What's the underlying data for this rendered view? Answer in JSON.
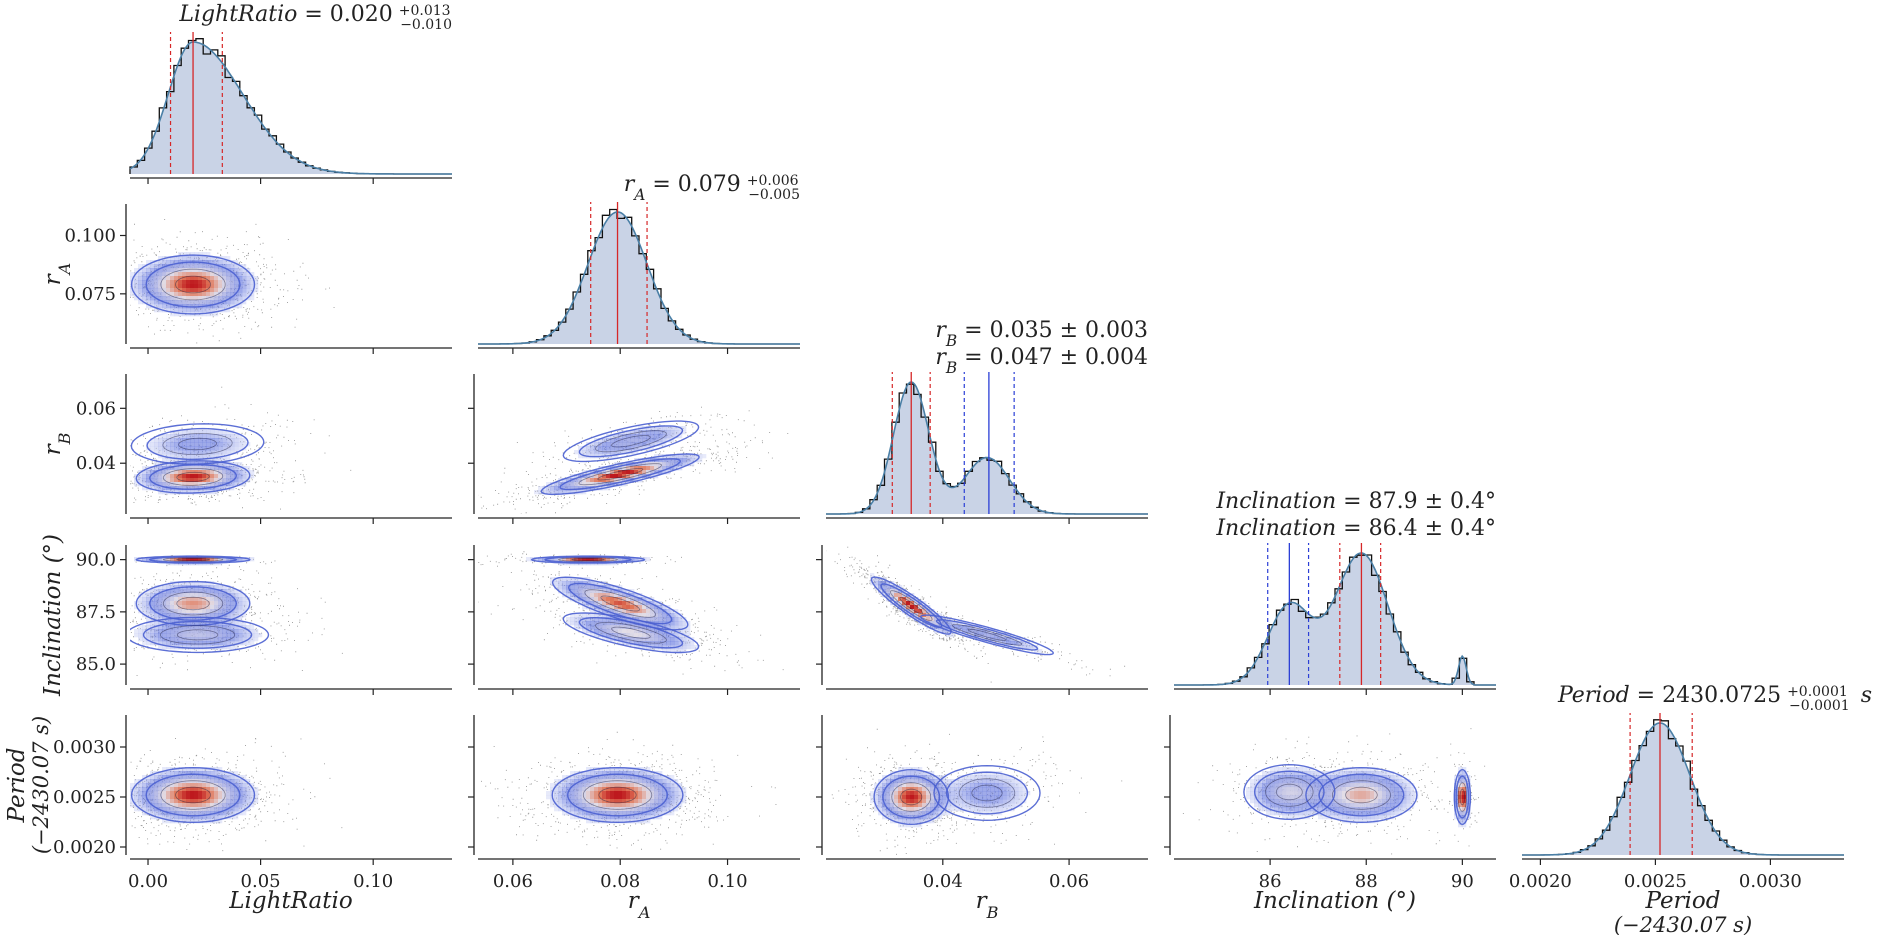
{
  "chart_data": {
    "type": "corner",
    "parameters": [
      {
        "key": "LightRatio",
        "label": "LightRatio",
        "sublabel": "",
        "range": [
          -0.008,
          0.135
        ],
        "ticks": [
          0.0,
          0.05,
          0.1
        ],
        "tick_labels": [
          "0.00",
          "0.05",
          "0.10"
        ]
      },
      {
        "key": "rA",
        "label": "r_A",
        "sublabel": "",
        "range": [
          0.0535,
          0.1135
        ],
        "ticks": [
          0.06,
          0.08,
          0.1
        ],
        "tick_labels": [
          "0.06",
          "0.08",
          "0.10"
        ]
      },
      {
        "key": "rB",
        "label": "r_B",
        "sublabel": "",
        "range": [
          0.0215,
          0.0725
        ],
        "ticks": [
          0.04,
          0.06
        ],
        "tick_labels": [
          "0.04",
          "0.06"
        ]
      },
      {
        "key": "Inclination",
        "label": "Inclination (°)",
        "sublabel": "",
        "range": [
          84.0,
          90.7
        ],
        "ticks": [
          86,
          88,
          90
        ],
        "tick_labels": [
          "86",
          "88",
          "90"
        ]
      },
      {
        "key": "Period",
        "label": "Period",
        "sublabel": "(−2430.07 s)",
        "range": [
          0.00192,
          0.00332
        ],
        "ticks": [
          0.002,
          0.0025,
          0.003
        ],
        "tick_labels": [
          "0.0020",
          "0.0025",
          "0.0030"
        ]
      }
    ],
    "y_ticks": {
      "rA": {
        "values": [
          0.075,
          0.1
        ],
        "labels": [
          "0.075",
          "0.100"
        ]
      },
      "rB": {
        "values": [
          0.04,
          0.06
        ],
        "labels": [
          "0.04",
          "0.06"
        ]
      },
      "Inclination": {
        "values": [
          85.0,
          87.5,
          90.0
        ],
        "labels": [
          "85.0",
          "87.5",
          "90.0"
        ]
      },
      "Period": {
        "values": [
          0.002,
          0.0025,
          0.003
        ],
        "labels": [
          "0.0020",
          "0.0025",
          "0.0030"
        ]
      }
    },
    "y_axis_labels": {
      "rA": {
        "label": "r_A",
        "sublabel": ""
      },
      "rB": {
        "label": "r_B",
        "sublabel": ""
      },
      "Inclination": {
        "label": "Inclination (°)",
        "sublabel": ""
      },
      "Period": {
        "label": "Period",
        "sublabel": "(−2430.07 s)"
      }
    },
    "titles": [
      {
        "lines": [
          {
            "name": "LightRatio",
            "value": "0.020",
            "plus": "+0.013",
            "minus": "−0.010",
            "pm": "",
            "unit": ""
          }
        ]
      },
      {
        "lines": [
          {
            "name": "r_A",
            "value": "0.079",
            "plus": "+0.006",
            "minus": "−0.005",
            "pm": "",
            "unit": ""
          }
        ]
      },
      {
        "lines": [
          {
            "name": "r_B",
            "value": "0.035",
            "plus": "",
            "minus": "",
            "pm": "0.003",
            "unit": ""
          },
          {
            "name": "r_B",
            "value": "0.047",
            "plus": "",
            "minus": "",
            "pm": "0.004",
            "unit": ""
          }
        ]
      },
      {
        "lines": [
          {
            "name": "Inclination",
            "value": "87.9",
            "plus": "",
            "minus": "",
            "pm": "0.4",
            "unit": "°"
          },
          {
            "name": "Inclination",
            "value": "86.4",
            "plus": "",
            "minus": "",
            "pm": "0.4",
            "unit": "°"
          }
        ]
      },
      {
        "lines": [
          {
            "name": "Period",
            "value": "2430.0725",
            "plus": "+0.0001",
            "minus": "−0.0001",
            "pm": "",
            "unit": " s"
          }
        ]
      }
    ],
    "marginals": [
      {
        "modes": [
          {
            "weight": 1.0,
            "mu": 0.02,
            "sigma": 0.011,
            "skew_tail": 0.022
          }
        ],
        "quantiles": [
          {
            "median": 0.02,
            "lo": 0.01,
            "hi": 0.033,
            "color": "#d62728"
          }
        ]
      },
      {
        "modes": [
          {
            "weight": 1.0,
            "mu": 0.0795,
            "sigma": 0.0055
          }
        ],
        "quantiles": [
          {
            "median": 0.0795,
            "lo": 0.0745,
            "hi": 0.085,
            "color": "#d62728"
          }
        ]
      },
      {
        "modes": [
          {
            "weight": 0.7,
            "mu": 0.035,
            "sigma": 0.0028
          },
          {
            "weight": 0.3,
            "mu": 0.047,
            "sigma": 0.0036
          }
        ],
        "quantiles": [
          {
            "median": 0.035,
            "lo": 0.032,
            "hi": 0.038,
            "color": "#d62728"
          },
          {
            "median": 0.0473,
            "lo": 0.0434,
            "hi": 0.0513,
            "color": "#2b3fd6"
          }
        ]
      },
      {
        "modes": [
          {
            "weight": 0.33,
            "mu": 86.4,
            "sigma": 0.45
          },
          {
            "weight": 0.55,
            "mu": 87.9,
            "sigma": 0.55
          },
          {
            "weight": 0.12,
            "mu": 90.0,
            "sigma": 0.08
          }
        ],
        "quantiles": [
          {
            "median": 87.9,
            "lo": 87.45,
            "hi": 88.3,
            "color": "#d62728"
          },
          {
            "median": 86.4,
            "lo": 85.95,
            "hi": 86.8,
            "color": "#2b3fd6"
          }
        ]
      },
      {
        "modes": [
          {
            "weight": 1.0,
            "mu": 0.00252,
            "sigma": 0.00013
          }
        ],
        "quantiles": [
          {
            "median": 0.00252,
            "lo": 0.00239,
            "hi": 0.00266,
            "color": "#d62728"
          }
        ]
      }
    ],
    "joint_clusters": {
      "rA|LightRatio": [
        {
          "w": 1.0,
          "cx": 0.02,
          "cy": 0.079,
          "sx": 0.013,
          "sy": 0.006,
          "rho": 0.0
        }
      ],
      "rB|LightRatio": [
        {
          "w": 0.7,
          "cx": 0.02,
          "cy": 0.035,
          "sx": 0.012,
          "sy": 0.0028,
          "rho": 0.1
        },
        {
          "w": 0.3,
          "cx": 0.022,
          "cy": 0.047,
          "sx": 0.014,
          "sy": 0.0035,
          "rho": 0.1
        }
      ],
      "Inclination|LightRatio": [
        {
          "w": 0.55,
          "cx": 0.02,
          "cy": 87.9,
          "sx": 0.012,
          "sy": 0.5,
          "rho": 0.0
        },
        {
          "w": 0.33,
          "cx": 0.022,
          "cy": 86.4,
          "sx": 0.015,
          "sy": 0.4,
          "rho": 0.0
        },
        {
          "w": 0.12,
          "cx": 0.02,
          "cy": 90.0,
          "sx": 0.012,
          "sy": 0.08,
          "rho": 0.0
        }
      ],
      "Period|LightRatio": [
        {
          "w": 1.0,
          "cx": 0.02,
          "cy": 0.00252,
          "sx": 0.013,
          "sy": 0.00013,
          "rho": 0.0
        }
      ],
      "rB|rA": [
        {
          "w": 0.7,
          "cx": 0.08,
          "cy": 0.036,
          "sx": 0.007,
          "sy": 0.0035,
          "rho": 0.85
        },
        {
          "w": 0.3,
          "cx": 0.082,
          "cy": 0.048,
          "sx": 0.006,
          "sy": 0.0035,
          "rho": 0.7
        }
      ],
      "Inclination|rA": [
        {
          "w": 0.55,
          "cx": 0.08,
          "cy": 87.9,
          "sx": 0.006,
          "sy": 0.6,
          "rho": -0.8
        },
        {
          "w": 0.33,
          "cx": 0.082,
          "cy": 86.5,
          "sx": 0.006,
          "sy": 0.45,
          "rho": -0.7
        },
        {
          "w": 0.12,
          "cx": 0.074,
          "cy": 90.0,
          "sx": 0.005,
          "sy": 0.08,
          "rho": 0.0
        }
      ],
      "Period|rA": [
        {
          "w": 1.0,
          "cx": 0.0795,
          "cy": 0.00252,
          "sx": 0.0058,
          "sy": 0.00013,
          "rho": 0.0
        }
      ],
      "Inclination|rB": [
        {
          "w": 0.7,
          "cx": 0.035,
          "cy": 87.8,
          "sx": 0.003,
          "sy": 0.65,
          "rho": -0.92
        },
        {
          "w": 0.3,
          "cx": 0.047,
          "cy": 86.4,
          "sx": 0.005,
          "sy": 0.45,
          "rho": -0.92
        }
      ],
      "Period|rB": [
        {
          "w": 0.7,
          "cx": 0.035,
          "cy": 0.0025,
          "sx": 0.0028,
          "sy": 0.00013,
          "rho": 0.0
        },
        {
          "w": 0.3,
          "cx": 0.047,
          "cy": 0.00254,
          "sx": 0.004,
          "sy": 0.00013,
          "rho": 0.0
        }
      ],
      "Period|Inclination": [
        {
          "w": 0.55,
          "cx": 87.9,
          "cy": 0.00252,
          "sx": 0.55,
          "sy": 0.00013,
          "rho": 0.0
        },
        {
          "w": 0.33,
          "cx": 86.4,
          "cy": 0.00255,
          "sx": 0.45,
          "sy": 0.00013,
          "rho": 0.0
        },
        {
          "w": 0.12,
          "cx": 90.0,
          "cy": 0.0025,
          "sx": 0.08,
          "sy": 0.00013,
          "rho": 0.0
        }
      ]
    },
    "colors": {
      "hist_fill": "#c9d3e6",
      "hist_edge": "#111111",
      "kde_line": "#4a7fa6",
      "contour": "#4a5fd0",
      "density_peak": "#c0392b",
      "points": "#333333"
    },
    "grid": false
  }
}
